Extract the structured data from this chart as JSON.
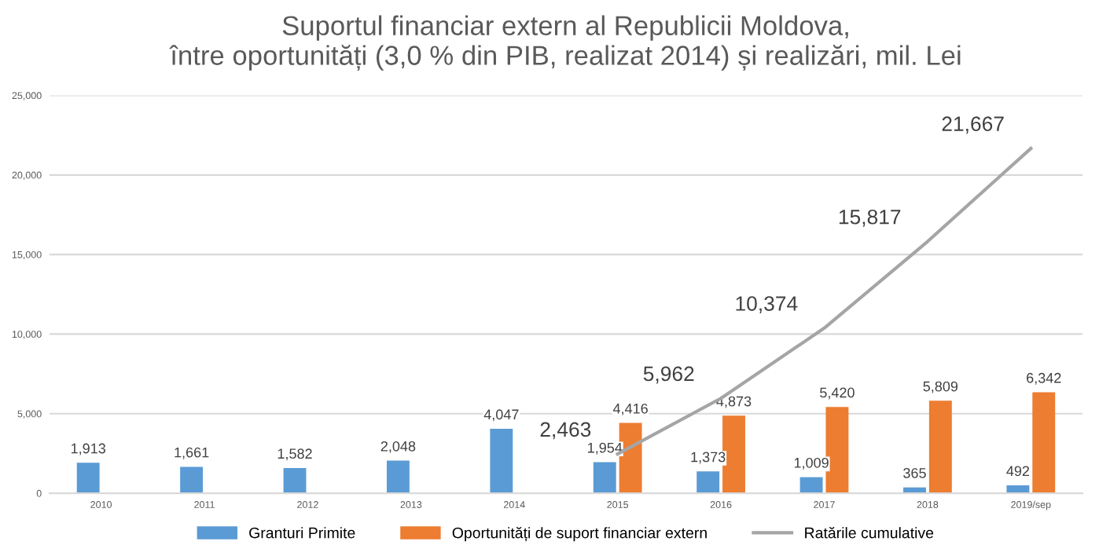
{
  "chart_data": {
    "type": "bar",
    "title": "Suportul financiar extern al Republicii Moldova,\nîntre oportunități (3,0 % din PIB, realizat 2014) și realizări, mil. Lei",
    "categories": [
      "2010",
      "2011",
      "2012",
      "2013",
      "2014",
      "2015",
      "2016",
      "2017",
      "2018",
      "2019/sep"
    ],
    "series": [
      {
        "name": "Granturi Primite",
        "color": "#5b9bd5",
        "values": [
          1913,
          1661,
          1582,
          2048,
          4047,
          1954,
          1373,
          1009,
          365,
          492
        ],
        "value_labels": [
          "1,913",
          "1,661",
          "1,582",
          "2,048",
          "4,047",
          "1,954",
          "1,373",
          "1,009",
          "365",
          "492"
        ]
      },
      {
        "name": "Oportunități de suport financiar extern",
        "color": "#ed7d31",
        "values": [
          null,
          null,
          null,
          null,
          null,
          4416,
          4873,
          5420,
          5809,
          6342
        ],
        "value_labels": [
          null,
          null,
          null,
          null,
          null,
          "4,416",
          "4,873",
          "5,420",
          "5,809",
          "6,342"
        ]
      },
      {
        "name": "Ratările cumulative",
        "type": "line",
        "color": "#a5a5a5",
        "values": [
          null,
          null,
          null,
          null,
          null,
          2463,
          5962,
          10374,
          15817,
          21667
        ],
        "value_labels": [
          null,
          null,
          null,
          null,
          null,
          "2,463",
          "5,962",
          "10,374",
          "15,817",
          "21,667"
        ]
      }
    ],
    "ylim": [
      0,
      25000
    ],
    "yticks": [
      {
        "value": 0,
        "label": "0"
      },
      {
        "value": 5000,
        "label": "5,000"
      },
      {
        "value": 10000,
        "label": "10,000"
      },
      {
        "value": 15000,
        "label": "15,000"
      },
      {
        "value": 20000,
        "label": "20,000"
      },
      {
        "value": 25000,
        "label": "25,000"
      }
    ],
    "grid": "y",
    "legend": "bottom",
    "marker": "none",
    "line_style": "solid"
  }
}
